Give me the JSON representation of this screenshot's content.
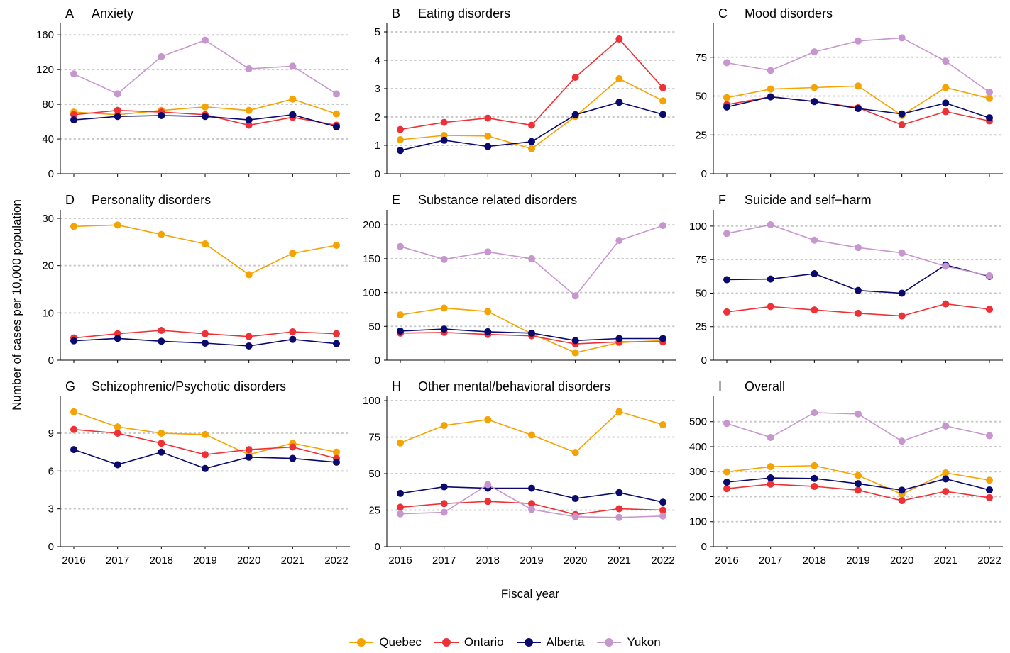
{
  "axes": {
    "ylabel": "Number of cases per 10,000 population",
    "xlabel": "Fiscal year"
  },
  "legend": [
    {
      "name": "Quebec",
      "color": "#F5A300"
    },
    {
      "name": "Ontario",
      "color": "#EE3136"
    },
    {
      "name": "Alberta",
      "color": "#0A0A6E"
    },
    {
      "name": "Yukon",
      "color": "#C896CF"
    }
  ],
  "chart_data": [
    {
      "type": "line",
      "panel": "A",
      "title": "Anxiety",
      "x": [
        2016,
        2017,
        2018,
        2019,
        2020,
        2021,
        2022
      ],
      "ylim": [
        0,
        170
      ],
      "yticks": [
        0,
        40,
        80,
        120,
        160
      ],
      "series": [
        {
          "name": "Quebec",
          "values": [
            71,
            68,
            73,
            77,
            73,
            86,
            69
          ]
        },
        {
          "name": "Ontario",
          "values": [
            68,
            73,
            71,
            68,
            56,
            65,
            56
          ]
        },
        {
          "name": "Alberta",
          "values": [
            62,
            66,
            67,
            66,
            62,
            68,
            54
          ]
        },
        {
          "name": "Yukon",
          "values": [
            115,
            92,
            135,
            154,
            121,
            124,
            92
          ]
        }
      ]
    },
    {
      "type": "line",
      "panel": "B",
      "title": "Eating disorders",
      "x": [
        2016,
        2017,
        2018,
        2019,
        2020,
        2021,
        2022
      ],
      "ylim": [
        0,
        5.2
      ],
      "yticks": [
        0,
        1,
        2,
        3,
        4,
        5
      ],
      "series": [
        {
          "name": "Quebec",
          "values": [
            1.2,
            1.35,
            1.33,
            0.88,
            2.02,
            3.35,
            2.57
          ]
        },
        {
          "name": "Ontario",
          "values": [
            1.56,
            1.81,
            1.96,
            1.71,
            3.4,
            4.75,
            3.03
          ]
        },
        {
          "name": "Alberta",
          "values": [
            0.82,
            1.18,
            0.96,
            1.13,
            2.08,
            2.52,
            2.09
          ]
        }
      ]
    },
    {
      "type": "line",
      "panel": "C",
      "title": "Mood disorders",
      "x": [
        2016,
        2017,
        2018,
        2019,
        2020,
        2021,
        2022
      ],
      "ylim": [
        0,
        95
      ],
      "yticks": [
        0,
        25,
        50,
        75
      ],
      "series": [
        {
          "name": "Quebec",
          "values": [
            49,
            54.5,
            55.5,
            56.5,
            37.5,
            55.5,
            48.5
          ]
        },
        {
          "name": "Ontario",
          "values": [
            44.5,
            49.5,
            46.5,
            42.5,
            31.5,
            40,
            34
          ]
        },
        {
          "name": "Alberta",
          "values": [
            43,
            49.5,
            46.5,
            42,
            38.5,
            45.5,
            36
          ]
        },
        {
          "name": "Yukon",
          "values": [
            71.5,
            66.5,
            78.5,
            85.5,
            87.5,
            72.5,
            52.5
          ]
        }
      ]
    },
    {
      "type": "line",
      "panel": "D",
      "title": "Personality disorders",
      "x": [
        2016,
        2017,
        2018,
        2019,
        2020,
        2021,
        2022
      ],
      "ylim": [
        0,
        31.2
      ],
      "yticks": [
        0,
        10,
        20,
        30
      ],
      "series": [
        {
          "name": "Quebec",
          "values": [
            28.3,
            28.6,
            26.6,
            24.6,
            18.1,
            22.6,
            24.3
          ]
        },
        {
          "name": "Ontario",
          "values": [
            4.7,
            5.6,
            6.3,
            5.6,
            5.0,
            6.0,
            5.6
          ]
        },
        {
          "name": "Alberta",
          "values": [
            4.1,
            4.6,
            4.0,
            3.6,
            3.0,
            4.4,
            3.5
          ]
        }
      ]
    },
    {
      "type": "line",
      "panel": "E",
      "title": "Substance related disorders",
      "x": [
        2016,
        2017,
        2018,
        2019,
        2020,
        2021,
        2022
      ],
      "ylim": [
        0,
        218
      ],
      "yticks": [
        0,
        50,
        100,
        150,
        200
      ],
      "series": [
        {
          "name": "Quebec",
          "values": [
            67,
            77,
            72,
            39,
            11,
            26,
            29
          ]
        },
        {
          "name": "Ontario",
          "values": [
            40,
            41,
            38,
            36,
            24,
            27,
            27
          ]
        },
        {
          "name": "Alberta",
          "values": [
            43,
            46,
            42,
            40,
            29,
            32,
            32
          ]
        },
        {
          "name": "Yukon",
          "values": [
            168,
            149,
            160,
            150,
            95,
            177,
            199
          ]
        }
      ]
    },
    {
      "type": "line",
      "panel": "F",
      "title": "Suicide and self−harm",
      "x": [
        2016,
        2017,
        2018,
        2019,
        2020,
        2021,
        2022
      ],
      "ylim": [
        0,
        110
      ],
      "yticks": [
        0,
        25,
        50,
        75,
        100
      ],
      "series": [
        {
          "name": "Ontario",
          "values": [
            36,
            40,
            37.5,
            35,
            33,
            42,
            38
          ]
        },
        {
          "name": "Alberta",
          "values": [
            60,
            60.5,
            64.5,
            52,
            50,
            71,
            62.5
          ]
        },
        {
          "name": "Yukon",
          "values": [
            94.5,
            101,
            89.5,
            84,
            80,
            70,
            63
          ]
        }
      ]
    },
    {
      "type": "line",
      "panel": "G",
      "title": "Schizophrenic/Psychotic disorders",
      "x": [
        2016,
        2017,
        2018,
        2019,
        2020,
        2021,
        2022
      ],
      "ylim": [
        0,
        11.7
      ],
      "yticks": [
        0,
        3,
        6,
        9
      ],
      "series": [
        {
          "name": "Quebec",
          "values": [
            10.7,
            9.5,
            9.0,
            8.9,
            7.3,
            8.2,
            7.5
          ]
        },
        {
          "name": "Ontario",
          "values": [
            9.3,
            9.0,
            8.2,
            7.3,
            7.7,
            7.9,
            7.0
          ]
        },
        {
          "name": "Alberta",
          "values": [
            7.7,
            6.5,
            7.5,
            6.2,
            7.1,
            7.0,
            6.7
          ]
        }
      ]
    },
    {
      "type": "line",
      "panel": "H",
      "title": "Other mental/behavioral disorders",
      "x": [
        2016,
        2017,
        2018,
        2019,
        2020,
        2021,
        2022
      ],
      "ylim": [
        0,
        101
      ],
      "yticks": [
        0,
        25,
        50,
        75,
        100
      ],
      "series": [
        {
          "name": "Quebec",
          "values": [
            71,
            83,
            87,
            76.5,
            64.5,
            92.5,
            83.5
          ]
        },
        {
          "name": "Ontario",
          "values": [
            27,
            29.5,
            31,
            29.5,
            22,
            26,
            25
          ]
        },
        {
          "name": "Alberta",
          "values": [
            36.5,
            41,
            40,
            40,
            33,
            37,
            30.5
          ]
        },
        {
          "name": "Yukon",
          "values": [
            22.5,
            23.5,
            42.5,
            25.5,
            20.5,
            20,
            21
          ]
        }
      ]
    },
    {
      "type": "line",
      "panel": "I",
      "title": "Overall",
      "x": [
        2016,
        2017,
        2018,
        2019,
        2020,
        2021,
        2022
      ],
      "ylim": [
        0,
        590
      ],
      "yticks": [
        0,
        100,
        200,
        300,
        400,
        500
      ],
      "series": [
        {
          "name": "Quebec",
          "values": [
            299,
            320,
            324,
            285,
            210,
            295,
            266
          ]
        },
        {
          "name": "Ontario",
          "values": [
            232,
            250,
            241,
            226,
            184,
            221,
            196
          ]
        },
        {
          "name": "Alberta",
          "values": [
            258,
            275,
            273,
            252,
            226,
            271,
            227
          ]
        },
        {
          "name": "Yukon",
          "values": [
            493,
            437,
            536,
            531,
            422,
            483,
            444
          ]
        }
      ]
    }
  ]
}
